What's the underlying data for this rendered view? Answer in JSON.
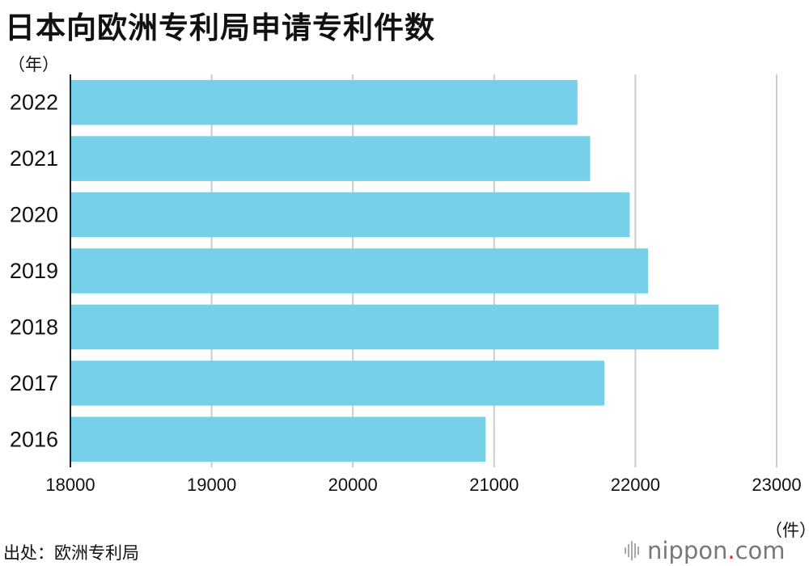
{
  "title": "日本向欧洲专利局申请专利件数",
  "y_unit": "（年）",
  "x_unit": "（件）",
  "source": "出处：欧洲专利局",
  "brand": {
    "name": "nippon",
    "dot": ".",
    "suffix": "com",
    "icon": "sound-wave-icon"
  },
  "colors": {
    "bar": "#76d0ea",
    "grid": "#cccccc",
    "axis": "#222222",
    "brand_dot": "#d62828"
  },
  "chart_data": {
    "type": "bar",
    "orientation": "horizontal",
    "categories": [
      "2022",
      "2021",
      "2020",
      "2019",
      "2018",
      "2017",
      "2016"
    ],
    "values": [
      21590,
      21680,
      21960,
      22090,
      22590,
      21780,
      20940
    ],
    "xlim": [
      18000,
      23000
    ],
    "xticks": [
      "18000",
      "19000",
      "20000",
      "21000",
      "22000",
      "23000"
    ],
    "grid": true
  }
}
